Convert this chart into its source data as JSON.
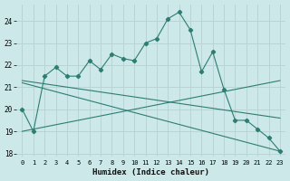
{
  "xlabel": "Humidex (Indice chaleur)",
  "x_values": [
    0,
    1,
    2,
    3,
    4,
    5,
    6,
    7,
    8,
    9,
    10,
    11,
    12,
    13,
    14,
    15,
    16,
    17,
    18,
    19,
    20,
    21,
    22,
    23
  ],
  "zigzag": [
    20.0,
    19.0,
    21.5,
    21.9,
    21.5,
    21.5,
    22.2,
    21.8,
    22.5,
    22.3,
    22.2,
    23.0,
    23.2,
    24.1,
    24.4,
    23.6,
    21.7,
    22.6,
    20.9,
    19.5,
    19.5,
    19.1,
    18.7,
    18.1
  ],
  "straight_lines": [
    {
      "x0": 0,
      "y0": 19.0,
      "x1": 23,
      "y1": 21.3
    },
    {
      "x0": 0,
      "y0": 21.3,
      "x1": 23,
      "y1": 19.6
    },
    {
      "x0": 0,
      "y0": 21.2,
      "x1": 23,
      "y1": 18.1
    }
  ],
  "bg_color": "#cce8e8",
  "grid_color": "#b8d4d4",
  "line_color": "#2e7d72",
  "ylim_min": 17.85,
  "ylim_max": 24.75,
  "yticks": [
    18,
    19,
    20,
    21,
    22,
    23,
    24
  ],
  "xticks": [
    0,
    1,
    2,
    3,
    4,
    5,
    6,
    7,
    8,
    9,
    10,
    11,
    12,
    13,
    14,
    15,
    16,
    17,
    18,
    19,
    20,
    21,
    22,
    23
  ]
}
